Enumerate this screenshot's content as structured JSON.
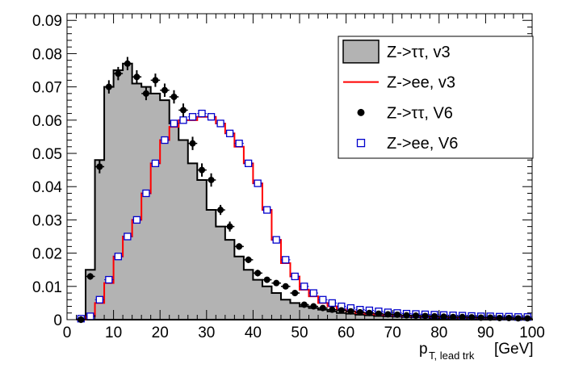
{
  "colors": {
    "fill_hist": "#b3b3b3",
    "red_line": "#ff0000",
    "blue_marker": "#0000cc",
    "black": "#000000"
  },
  "chart_data": {
    "type": "histogram",
    "xlabel_main": "p",
    "xlabel_sub": "T, lead trk",
    "xlabel_unit": "[GeV]",
    "xlim": [
      0,
      100
    ],
    "ylim": [
      0,
      0.092
    ],
    "x_ticks": [
      0,
      10,
      20,
      30,
      40,
      50,
      60,
      70,
      80,
      90,
      100
    ],
    "y_ticks": [
      "0",
      "0.01",
      "0.02",
      "0.03",
      "0.04",
      "0.05",
      "0.06",
      "0.07",
      "0.08",
      "0.09"
    ],
    "bin_width": 2,
    "bin_edges_start": 2,
    "legend": {
      "position": "top-right",
      "entries": [
        {
          "label": "Z->ττ, v3",
          "style": "filled-box"
        },
        {
          "label": "Z->ee, v3",
          "style": "red-line"
        },
        {
          "label": "Z->ττ, V6",
          "style": "black-dot"
        },
        {
          "label": "Z->ee, V6",
          "style": "blue-open-square"
        }
      ]
    },
    "series": [
      {
        "name": "Z->ττ, v3",
        "kind": "filled-step",
        "values": [
          0.0,
          0.015,
          0.048,
          0.07,
          0.075,
          0.077,
          0.071,
          0.07,
          0.068,
          0.066,
          0.059,
          0.054,
          0.047,
          0.042,
          0.033,
          0.028,
          0.024,
          0.019,
          0.015,
          0.012,
          0.01,
          0.008,
          0.006,
          0.005,
          0.004,
          0.0035,
          0.003,
          0.0025,
          0.002,
          0.0018,
          0.0015,
          0.0013,
          0.0011,
          0.001,
          0.0009,
          0.0008,
          0.0007,
          0.0006,
          0.0005,
          0.0004,
          0.0003,
          0.0003,
          0.0002,
          0.0002,
          0.0001,
          0.0001,
          0.0001,
          0.0001,
          0.0001
        ]
      },
      {
        "name": "Z->ee, v3",
        "kind": "red-step",
        "values": [
          0.0,
          0.001,
          0.005,
          0.011,
          0.019,
          0.025,
          0.03,
          0.038,
          0.047,
          0.054,
          0.058,
          0.06,
          0.06,
          0.061,
          0.061,
          0.059,
          0.056,
          0.052,
          0.047,
          0.041,
          0.033,
          0.024,
          0.017,
          0.013,
          0.009,
          0.007,
          0.005,
          0.004,
          0.003,
          0.0025,
          0.002,
          0.0018,
          0.0015,
          0.0013,
          0.0012,
          0.0011,
          0.001,
          0.0009,
          0.0008,
          0.0008,
          0.0007,
          0.0006,
          0.0006,
          0.0005,
          0.0005,
          0.0004,
          0.0004,
          0.0004,
          0.0003
        ]
      },
      {
        "name": "Z->ττ, V6",
        "kind": "black-dot",
        "values": [
          0.0,
          0.013,
          0.046,
          0.07,
          0.074,
          0.077,
          0.073,
          0.068,
          0.072,
          0.069,
          0.067,
          0.063,
          0.053,
          0.045,
          0.042,
          0.033,
          0.028,
          0.022,
          0.018,
          0.014,
          0.012,
          0.011,
          0.01,
          0.008,
          0.0045,
          0.004,
          0.0035,
          0.003,
          0.0028,
          0.0025,
          0.0022,
          0.002,
          0.0018,
          0.0016,
          0.0015,
          0.0013,
          0.0012,
          0.0011,
          0.001,
          0.0009,
          0.0008,
          0.0008,
          0.0007,
          0.0006,
          0.0006,
          0.0005,
          0.0005,
          0.0004,
          0.0004
        ],
        "errors": [
          0.001,
          0.001,
          0.002,
          0.002,
          0.002,
          0.002,
          0.002,
          0.002,
          0.002,
          0.002,
          0.002,
          0.002,
          0.002,
          0.002,
          0.002,
          0.0015,
          0.0015,
          0.001,
          0.001,
          0.001,
          0.0008,
          0.0008,
          0.0008,
          0.0006,
          0.0005,
          0.0005,
          0.0004,
          0.0004,
          0.0004,
          0.0003,
          0.0003,
          0.0003,
          0.0003,
          0.0002,
          0.0002,
          0.0002,
          0.0002,
          0.0002,
          0.0002,
          0.0002,
          0.0001,
          0.0001,
          0.0001,
          0.0001,
          0.0001,
          0.0001,
          0.0001,
          0.0001,
          0.0001
        ]
      },
      {
        "name": "Z->ee, V6",
        "kind": "blue-square",
        "values": [
          0.0003,
          0.001,
          0.006,
          0.012,
          0.019,
          0.025,
          0.03,
          0.038,
          0.047,
          0.054,
          0.059,
          0.06,
          0.061,
          0.062,
          0.061,
          0.059,
          0.056,
          0.053,
          0.047,
          0.041,
          0.033,
          0.024,
          0.018,
          0.013,
          0.01,
          0.008,
          0.006,
          0.005,
          0.004,
          0.0035,
          0.003,
          0.0028,
          0.0025,
          0.0022,
          0.002,
          0.0018,
          0.0017,
          0.0016,
          0.0015,
          0.0014,
          0.0013,
          0.0012,
          0.0011,
          0.001,
          0.001,
          0.0009,
          0.0009,
          0.0008,
          0.0008
        ]
      }
    ]
  }
}
